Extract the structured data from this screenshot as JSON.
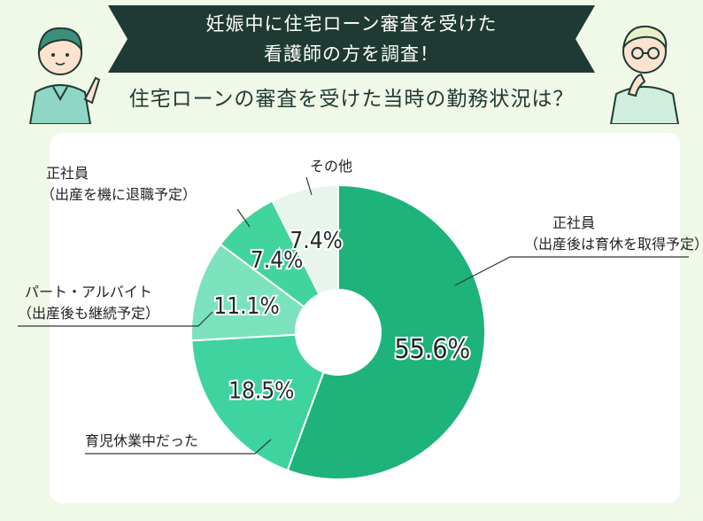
{
  "header": {
    "banner_line1": "妊娠中に住宅ローン審査を受けた",
    "banner_line2": "看護師の方を調査！",
    "subtitle": "住宅ローンの審査を受けた当時の勤務状況は？"
  },
  "chart_data": {
    "type": "donut",
    "title": "住宅ローンの審査を受けた当時の勤務状況は？",
    "slices": [
      {
        "label_line1": "正社員",
        "label_line2": "（出産後は育休を取得予定）",
        "value": 55.6,
        "value_label": "55.6%",
        "color": "#1db37a"
      },
      {
        "label_line1": "育児休業中だった",
        "label_line2": "",
        "value": 18.5,
        "value_label": "18.5%",
        "color": "#3fd3a0"
      },
      {
        "label_line1": "パート・アルバイト",
        "label_line2": "（出産後も継続予定）",
        "value": 11.1,
        "value_label": "11.1%",
        "color": "#7ce2bd"
      },
      {
        "label_line1": "正社員",
        "label_line2": "（出産を機に退職予定）",
        "value": 7.4,
        "value_label": "7.4%",
        "color": "#42d49d"
      },
      {
        "label_line1": "その他",
        "label_line2": "",
        "value": 7.4,
        "value_label": "7.4%",
        "color": "#e8f5ec"
      }
    ]
  }
}
